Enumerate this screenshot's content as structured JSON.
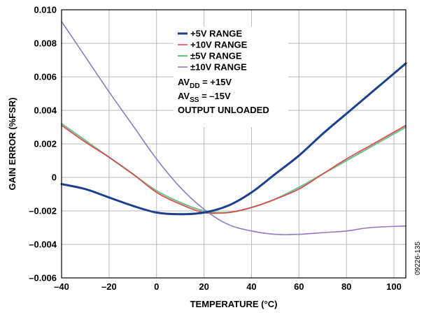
{
  "chart_data": {
    "type": "line",
    "title": "",
    "xlabel": "TEMPERATURE (°C)",
    "ylabel": "GAIN ERROR (%FSR)",
    "xlim": [
      -40,
      105
    ],
    "ylim": [
      -0.006,
      0.01
    ],
    "grid": true,
    "x_ticks": [
      "–40",
      "–20",
      "0",
      "20",
      "40",
      "60",
      "80",
      "100"
    ],
    "y_ticks": [
      "–0.006",
      "–0.004",
      "–0.002",
      "0",
      "0.002",
      "0.004",
      "0.006",
      "0.008",
      "0.010"
    ],
    "legend_position": "top-center",
    "series": [
      {
        "name": "+5V RANGE",
        "color": "#1c3f8f",
        "x": [
          -40,
          -30,
          -20,
          -10,
          0,
          10,
          20,
          30,
          40,
          50,
          60,
          70,
          80,
          90,
          105
        ],
        "y": [
          -0.0004,
          -0.0007,
          -0.0012,
          -0.0017,
          -0.0021,
          -0.0022,
          -0.0021,
          -0.0017,
          -0.0009,
          0.0002,
          0.0013,
          0.0026,
          0.0038,
          0.005,
          0.0068
        ]
      },
      {
        "name": "+10V RANGE",
        "color": "#e0464b",
        "x": [
          -40,
          -30,
          -20,
          -10,
          0,
          10,
          20,
          30,
          40,
          50,
          60,
          70,
          80,
          90,
          105
        ],
        "y": [
          0.0031,
          0.0021,
          0.0012,
          0.0002,
          -0.0009,
          -0.0016,
          -0.0021,
          -0.0021,
          -0.0018,
          -0.0013,
          -0.0007,
          0.0002,
          0.0011,
          0.0019,
          0.0031
        ]
      },
      {
        "name": "±5V RANGE",
        "color": "#6fbf8e",
        "x": [
          -40,
          -30,
          -20,
          -10,
          0,
          10,
          20,
          30,
          40,
          50,
          60,
          70,
          80,
          90,
          105
        ],
        "y": [
          0.0032,
          0.0022,
          0.0012,
          0.0002,
          -0.0008,
          -0.0015,
          -0.002,
          -0.0021,
          -0.0018,
          -0.0013,
          -0.0006,
          0.0002,
          0.001,
          0.0018,
          0.003
        ]
      },
      {
        "name": "±10V RANGE",
        "color": "#8f78c4",
        "x": [
          -40,
          -30,
          -20,
          -10,
          0,
          10,
          20,
          30,
          40,
          50,
          60,
          70,
          80,
          90,
          105
        ],
        "y": [
          0.0093,
          0.0072,
          0.0051,
          0.0031,
          0.0011,
          -0.0006,
          -0.0019,
          -0.0028,
          -0.0032,
          -0.0034,
          -0.0034,
          -0.0033,
          -0.0032,
          -0.003,
          -0.0029
        ]
      }
    ],
    "annotations": [
      {
        "main": "AV",
        "sub": "DD",
        "rest": " = +15V"
      },
      {
        "main": "AV",
        "sub": "SS",
        "rest": " = –15V"
      },
      {
        "main": "OUTPUT UNLOADED",
        "sub": "",
        "rest": ""
      }
    ],
    "figure_id": "09226-135"
  }
}
